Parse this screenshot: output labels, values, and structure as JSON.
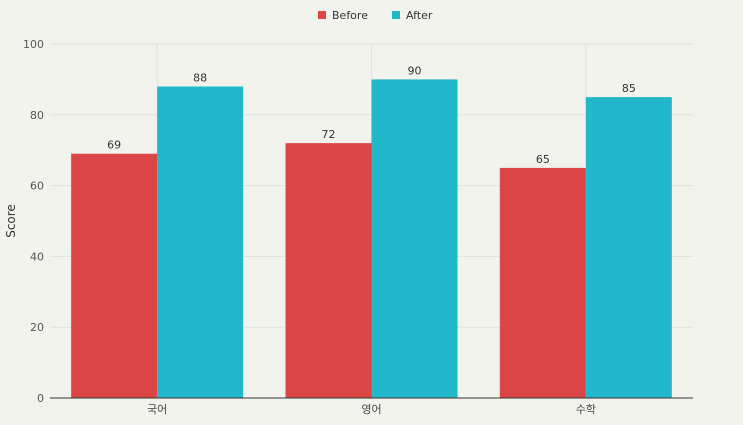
{
  "chart_data": {
    "type": "bar",
    "categories": [
      "국어",
      "영어",
      "수학"
    ],
    "series": [
      {
        "name": "Before",
        "values": [
          69,
          72,
          65
        ],
        "color": "#db4545"
      },
      {
        "name": "After",
        "values": [
          88,
          90,
          85
        ],
        "color": "#22b8cc"
      }
    ],
    "xlabel": "",
    "ylabel": "Score",
    "ylim": [
      0,
      100
    ],
    "yticks": [
      0,
      20,
      40,
      60,
      80,
      100
    ],
    "grid": true,
    "legend_position": "top-center"
  }
}
